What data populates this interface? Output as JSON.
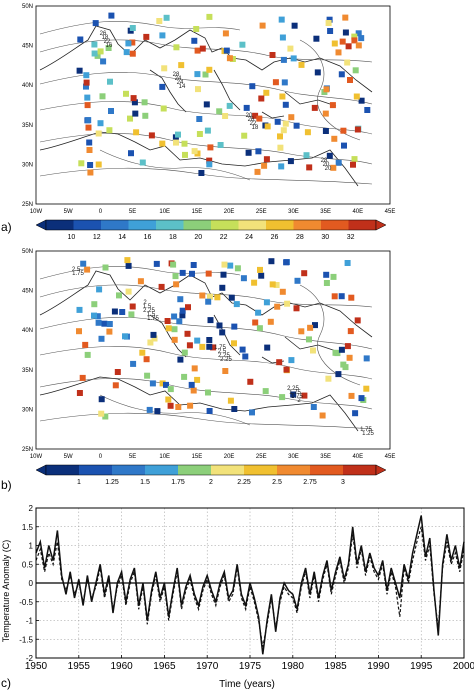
{
  "panels": {
    "a": {
      "letter": "a)",
      "lat_labels": [
        "50N",
        "45N",
        "40N",
        "35N",
        "30N",
        "25N"
      ],
      "lon_labels": [
        "10W",
        "5W",
        "0",
        "5E",
        "10E",
        "15E",
        "20E",
        "25E",
        "30E",
        "35E",
        "40E",
        "45E"
      ],
      "contour_labels": [
        "16",
        "14",
        "18",
        "20",
        "22",
        "24",
        "22",
        "20",
        "18",
        "24",
        "26",
        "28",
        "26",
        "28",
        "20"
      ],
      "colorbar_labels": [
        "10",
        "12",
        "14",
        "16",
        "18",
        "20",
        "22",
        "24",
        "26",
        "28",
        "30",
        "32"
      ],
      "colorbar_colors": [
        "#0b2f7a",
        "#1b52b0",
        "#2f78c8",
        "#3fa0d8",
        "#5cc0c8",
        "#8ccf7a",
        "#c6df5a",
        "#f2e27a",
        "#f0c030",
        "#f08a30",
        "#e25a20",
        "#c0301a"
      ]
    },
    "b": {
      "letter": "b)",
      "lat_labels": [
        "50N",
        "45N",
        "40N",
        "35N",
        "30N",
        "25N"
      ],
      "lon_labels": [
        "10W",
        "5W",
        "0",
        "5E",
        "10E",
        "15E",
        "20E",
        "25E",
        "30E",
        "35E",
        "40E",
        "45E"
      ],
      "contour_labels": [
        "1.75",
        "2.25",
        "2",
        "1.75",
        "1.5",
        "2.25",
        "1.75",
        "2.5",
        "2.25",
        "2.5",
        "1.75",
        "1.25",
        "1.5",
        "1.75",
        "2.25",
        "1.75",
        "2"
      ],
      "colorbar_labels": [
        "1",
        "1.25",
        "1.5",
        "1.75",
        "2",
        "2.25",
        "2.5",
        "2.75",
        "3"
      ],
      "colorbar_colors": [
        "#0b2f7a",
        "#1b52b0",
        "#2f78c8",
        "#3fa0d8",
        "#8ccf7a",
        "#f2e27a",
        "#f0c030",
        "#f08a30",
        "#e25a20",
        "#c0301a"
      ]
    },
    "c": {
      "letter": "c)"
    }
  },
  "chart_data": {
    "type": "line",
    "xlabel": "Time (years)",
    "ylabel": "Temperature Anomaly (C)",
    "xlim": [
      1950,
      2000
    ],
    "ylim": [
      -2,
      2
    ],
    "x_ticks": [
      "1950",
      "1955",
      "1960",
      "1965",
      "1970",
      "1975",
      "1980",
      "1985",
      "1990",
      "1995",
      "2000"
    ],
    "y_ticks": [
      "2",
      "1.5",
      "1",
      "0.5",
      "0",
      "-0.5",
      "-1",
      "-1.5",
      "-2"
    ],
    "grid": true,
    "x": [
      1950,
      1950.5,
      1951,
      1951.5,
      1952,
      1952.5,
      1953,
      1953.5,
      1954,
      1954.5,
      1955,
      1955.5,
      1956,
      1956.5,
      1957,
      1957.5,
      1958,
      1958.5,
      1959,
      1959.5,
      1960,
      1960.5,
      1961,
      1961.5,
      1962,
      1962.5,
      1963,
      1963.5,
      1964,
      1964.5,
      1965,
      1965.5,
      1966,
      1966.5,
      1967,
      1967.5,
      1968,
      1968.5,
      1969,
      1969.5,
      1970,
      1970.5,
      1971,
      1971.5,
      1972,
      1972.5,
      1973,
      1973.5,
      1974,
      1974.5,
      1975,
      1975.5,
      1976,
      1976.5,
      1977,
      1977.5,
      1978,
      1978.5,
      1979,
      1979.5,
      1980,
      1980.5,
      1981,
      1981.5,
      1982,
      1982.5,
      1983,
      1983.5,
      1984,
      1984.5,
      1985,
      1985.5,
      1986,
      1986.5,
      1987,
      1987.5,
      1988,
      1988.5,
      1989,
      1989.5,
      1990,
      1990.5,
      1991,
      1991.5,
      1992,
      1992.5,
      1993,
      1993.5,
      1994,
      1994.5,
      1995,
      1995.5,
      1996,
      1996.5,
      1997,
      1997.5,
      1998,
      1998.5,
      1999,
      1999.5,
      2000
    ],
    "series": [
      {
        "style": "solid",
        "values": [
          0.8,
          1.1,
          0.4,
          1.0,
          0.6,
          1.4,
          0.2,
          -0.3,
          0.3,
          -0.4,
          0.1,
          -0.6,
          0.2,
          -0.5,
          0.0,
          0.5,
          -0.3,
          0.2,
          -0.8,
          0.0,
          0.3,
          -0.5,
          0.1,
          0.4,
          -0.6,
          0.0,
          -1.0,
          -0.2,
          0.3,
          -0.4,
          0.0,
          -0.9,
          -0.2,
          0.4,
          -0.6,
          -0.1,
          0.2,
          -0.3,
          -0.6,
          -0.1,
          0.2,
          -0.2,
          -0.5,
          0.0,
          0.3,
          -0.4,
          -0.2,
          0.5,
          -0.3,
          -0.6,
          0.0,
          -0.4,
          -0.9,
          -1.9,
          -1.0,
          -0.3,
          -1.3,
          -0.4,
          0.0,
          -0.2,
          -0.3,
          -0.7,
          0.0,
          0.4,
          -0.3,
          0.3,
          -0.4,
          0.2,
          0.6,
          -0.2,
          0.3,
          0.7,
          0.1,
          0.5,
          1.5,
          0.5,
          1.0,
          0.3,
          0.8,
          0.4,
          0.2,
          0.6,
          -0.2,
          0.4,
          0.0,
          -0.4,
          0.5,
          0.1,
          0.8,
          1.3,
          1.8,
          0.7,
          1.2,
          -0.2,
          -1.4,
          0.5,
          1.3,
          0.6,
          1.0,
          0.4,
          1.1
        ]
      },
      {
        "style": "dashed",
        "values": [
          0.6,
          0.9,
          0.3,
          0.8,
          0.5,
          1.1,
          0.1,
          -0.2,
          0.2,
          -0.3,
          0.0,
          -0.5,
          0.1,
          -0.4,
          -0.1,
          0.4,
          -0.4,
          0.1,
          -0.7,
          -0.1,
          0.2,
          -0.6,
          0.0,
          0.3,
          -0.7,
          -0.1,
          -1.1,
          -0.3,
          0.2,
          -0.5,
          -0.1,
          -1.0,
          -0.3,
          0.3,
          -0.7,
          -0.2,
          0.1,
          -0.4,
          -0.7,
          -0.2,
          0.1,
          -0.3,
          -0.6,
          -0.1,
          0.2,
          -0.5,
          -0.3,
          0.4,
          -0.4,
          -0.7,
          -0.1,
          -0.5,
          -1.0,
          -1.7,
          -1.1,
          -0.4,
          -1.2,
          -0.5,
          -0.1,
          -0.3,
          -0.4,
          -0.8,
          -0.1,
          0.3,
          -0.4,
          0.2,
          -0.5,
          0.1,
          0.5,
          -0.3,
          0.2,
          0.6,
          0.0,
          0.4,
          1.3,
          0.4,
          0.9,
          0.2,
          0.7,
          0.3,
          0.1,
          0.5,
          -0.3,
          0.3,
          -0.1,
          -0.9,
          0.4,
          0.0,
          0.6,
          1.1,
          1.5,
          0.6,
          1.0,
          -0.3,
          -1.2,
          0.4,
          1.1,
          0.5,
          0.8,
          0.3,
          0.9
        ]
      }
    ]
  }
}
